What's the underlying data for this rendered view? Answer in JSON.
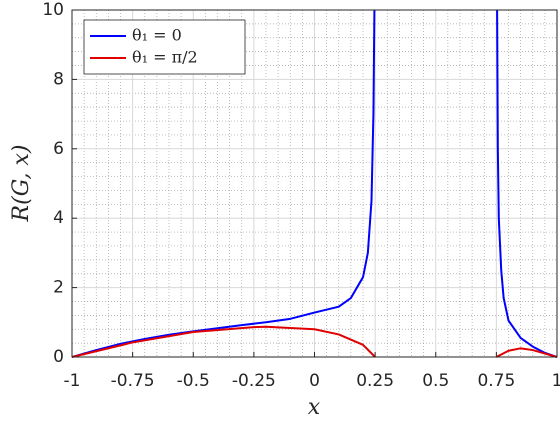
{
  "chart_data": {
    "type": "line",
    "xlabel": "x",
    "ylabel": "R(G, x)",
    "xlim": [
      -1,
      1
    ],
    "ylim": [
      0,
      10
    ],
    "xticks": [
      -1,
      -0.75,
      -0.5,
      -0.25,
      0,
      0.25,
      0.5,
      0.75,
      1
    ],
    "yticks": [
      0,
      2,
      4,
      6,
      8,
      10
    ],
    "xminorticks": [
      -0.95,
      -0.9,
      -0.85,
      -0.8,
      -0.7,
      -0.65,
      -0.6,
      -0.55,
      -0.45,
      -0.4,
      -0.35,
      -0.3,
      -0.2,
      -0.15,
      -0.1,
      -0.05,
      0.05,
      0.1,
      0.15,
      0.2,
      0.3,
      0.35,
      0.4,
      0.45,
      0.55,
      0.6,
      0.65,
      0.7,
      0.8,
      0.85,
      0.9,
      0.95
    ],
    "yminorticks": [
      0.4,
      0.8,
      1.2,
      1.6,
      2.4,
      2.8,
      3.2,
      3.6,
      4.4,
      4.8,
      5.2,
      5.6,
      6.4,
      6.8,
      7.2,
      7.6,
      8.4,
      8.8,
      9.2,
      9.6
    ],
    "grid": true,
    "minor_grid": true,
    "legend_loc": "upper left",
    "series": [
      {
        "name": "θ₁ = 0",
        "color": "#0000ff",
        "x": [
          -1,
          -0.9,
          -0.8,
          -0.7,
          -0.6,
          -0.5,
          -0.4,
          -0.3,
          -0.2,
          -0.1,
          0,
          0.1,
          0.15,
          0.2,
          0.22,
          0.235,
          0.243,
          0.247,
          null,
          0.753,
          0.756,
          0.76,
          0.77,
          0.78,
          0.8,
          0.85,
          0.9,
          0.95,
          1
        ],
        "values": [
          0,
          0.2,
          0.38,
          0.52,
          0.64,
          0.74,
          0.83,
          0.92,
          1.0,
          1.1,
          1.28,
          1.45,
          1.7,
          2.3,
          3.0,
          4.5,
          7,
          10,
          null,
          10,
          6,
          4,
          2.5,
          1.7,
          1.05,
          0.55,
          0.3,
          0.12,
          0
        ]
      },
      {
        "name": "θ₁ = π/2",
        "color": "#e00000",
        "x": [
          -1,
          -0.75,
          -0.5,
          -0.25,
          -0.2,
          0,
          0.1,
          0.2,
          0.25,
          null,
          0.75,
          0.8,
          0.85,
          0.9,
          0.95,
          1
        ],
        "values": [
          0,
          0.42,
          0.72,
          0.86,
          0.87,
          0.8,
          0.65,
          0.35,
          0,
          null,
          0,
          0.18,
          0.25,
          0.2,
          0.1,
          0
        ]
      }
    ]
  }
}
